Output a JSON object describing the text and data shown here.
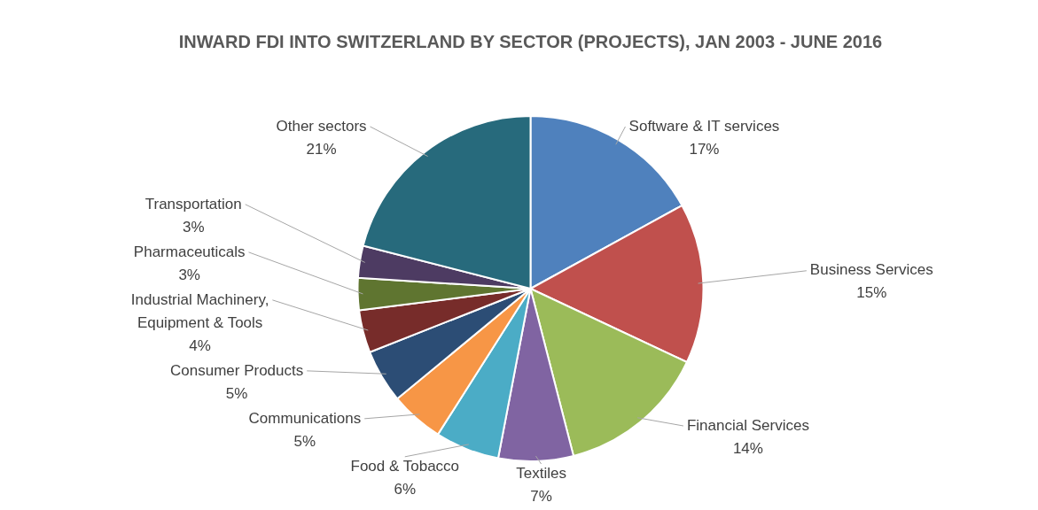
{
  "chart_data": {
    "type": "pie",
    "title": "INWARD FDI INTO SWITZERLAND BY SECTOR (PROJECTS), JAN 2003 - JUNE 2016",
    "categories": [
      "Software & IT services",
      "Business Services",
      "Financial Services",
      "Textiles",
      "Food & Tobacco",
      "Communications",
      "Consumer Products",
      "Industrial Machinery, Equipment & Tools",
      "Pharmaceuticals",
      "Transportation",
      "Other sectors"
    ],
    "values": [
      17,
      15,
      14,
      7,
      6,
      5,
      5,
      4,
      3,
      3,
      21
    ],
    "value_labels": [
      "17%",
      "15%",
      "14%",
      "7%",
      "6%",
      "5%",
      "5%",
      "4%",
      "3%",
      "3%",
      "21%"
    ],
    "colors": [
      "#4f81bd",
      "#c0504d",
      "#9bbb59",
      "#8064a2",
      "#4bacc6",
      "#f79646",
      "#2c4d75",
      "#772c2a",
      "#5f7530",
      "#4d3b62",
      "#276a7c"
    ]
  }
}
